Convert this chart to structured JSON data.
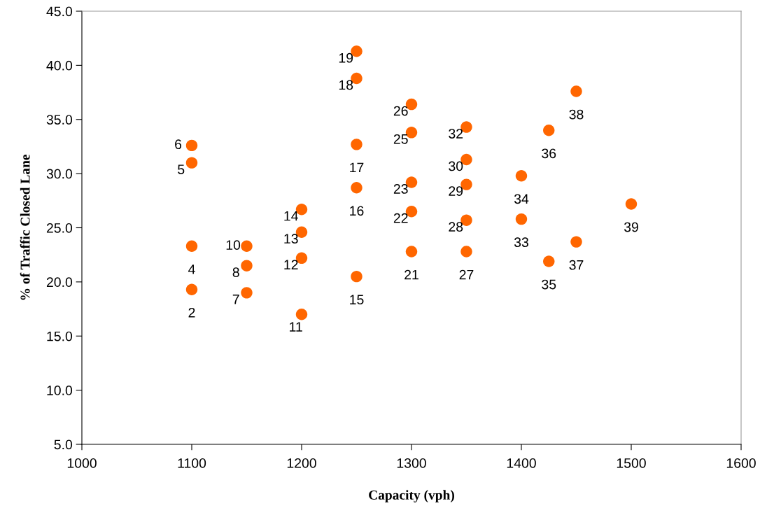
{
  "chart_data": {
    "type": "scatter",
    "xlabel": "Capacity (vph)",
    "ylabel": "% of Traffic Closed Lane",
    "x": [
      1100,
      1100,
      1100,
      1100,
      1150,
      1150,
      1150,
      1200,
      1200,
      1200,
      1200,
      1250,
      1250,
      1250,
      1250,
      1250,
      1300,
      1300,
      1300,
      1300,
      1300,
      1350,
      1350,
      1350,
      1350,
      1350,
      1400,
      1400,
      1425,
      1425,
      1450,
      1450,
      1500
    ],
    "series": [
      {
        "color": "#ff6600",
        "values": [
          19.3,
          23.3,
          31.0,
          32.6,
          19.0,
          21.5,
          23.3,
          17.0,
          22.2,
          24.6,
          26.7,
          20.5,
          28.7,
          32.7,
          38.8,
          41.3,
          22.8,
          26.5,
          29.2,
          33.8,
          36.4,
          22.8,
          25.7,
          29.0,
          31.3,
          34.3,
          25.8,
          29.8,
          21.9,
          34.0,
          23.7,
          37.6,
          27.2
        ]
      }
    ],
    "annotations": [
      {
        "text": "2",
        "x": 1100,
        "y": 19.3
      },
      {
        "text": "4",
        "x": 1100,
        "y": 23.3
      },
      {
        "text": "5",
        "x": 1100,
        "y": 31.0
      },
      {
        "text": "6",
        "x": 1100,
        "y": 32.6
      },
      {
        "text": "7",
        "x": 1150,
        "y": 19.0
      },
      {
        "text": "8",
        "x": 1150,
        "y": 21.5
      },
      {
        "text": "10",
        "x": 1150,
        "y": 23.3
      },
      {
        "text": "11",
        "x": 1200,
        "y": 17.0
      },
      {
        "text": "12",
        "x": 1200,
        "y": 22.2
      },
      {
        "text": "13",
        "x": 1200,
        "y": 24.6
      },
      {
        "text": "14",
        "x": 1200,
        "y": 26.7
      },
      {
        "text": "15",
        "x": 1250,
        "y": 20.5
      },
      {
        "text": "16",
        "x": 1250,
        "y": 28.7
      },
      {
        "text": "17",
        "x": 1250,
        "y": 32.7
      },
      {
        "text": "18",
        "x": 1250,
        "y": 38.8
      },
      {
        "text": "19",
        "x": 1250,
        "y": 41.3
      },
      {
        "text": "21",
        "x": 1300,
        "y": 22.8
      },
      {
        "text": "22",
        "x": 1300,
        "y": 26.5
      },
      {
        "text": "23",
        "x": 1300,
        "y": 29.2
      },
      {
        "text": "25",
        "x": 1300,
        "y": 33.8
      },
      {
        "text": "26",
        "x": 1300,
        "y": 36.4
      },
      {
        "text": "27",
        "x": 1350,
        "y": 22.8
      },
      {
        "text": "28",
        "x": 1350,
        "y": 25.7
      },
      {
        "text": "29",
        "x": 1350,
        "y": 29.0
      },
      {
        "text": "30",
        "x": 1350,
        "y": 31.3
      },
      {
        "text": "32",
        "x": 1350,
        "y": 34.3
      },
      {
        "text": "33",
        "x": 1400,
        "y": 25.8
      },
      {
        "text": "34",
        "x": 1400,
        "y": 29.8
      },
      {
        "text": "35",
        "x": 1425,
        "y": 21.9
      },
      {
        "text": "36",
        "x": 1425,
        "y": 34.0
      },
      {
        "text": "37",
        "x": 1450,
        "y": 23.7
      },
      {
        "text": "38",
        "x": 1450,
        "y": 37.6
      },
      {
        "text": "39",
        "x": 1500,
        "y": 27.2
      }
    ],
    "xlim": [
      1000,
      1600
    ],
    "xticks": [
      1000,
      1100,
      1200,
      1300,
      1400,
      1500,
      1600
    ],
    "ylim": [
      5.0,
      45.0
    ],
    "yticks": [
      {
        "value": 5,
        "label": "5.0"
      },
      {
        "value": 10,
        "label": "10.0"
      },
      {
        "value": 15,
        "label": "15.0"
      },
      {
        "value": 20,
        "label": "20.0"
      },
      {
        "value": 25,
        "label": "25.0"
      },
      {
        "value": 30,
        "label": "30.0"
      },
      {
        "value": 35,
        "label": "35.0"
      },
      {
        "value": 40,
        "label": "40.0"
      },
      {
        "value": 45,
        "label": "45.0"
      }
    ],
    "grid": false,
    "legend": false,
    "marker": "circle"
  }
}
